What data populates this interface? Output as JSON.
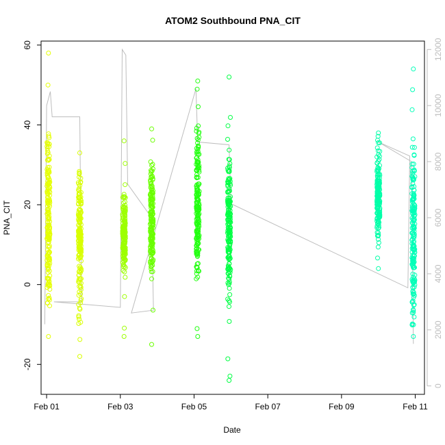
{
  "chart_data": {
    "type": "scatter",
    "title": "ATOM2 Southbound PNA_CIT",
    "xlabel": "Date",
    "ylabel": "PNA_CIT",
    "x_ticks": [
      "Feb 01",
      "Feb 03",
      "Feb 05",
      "Feb 07",
      "Feb 09",
      "Feb 11"
    ],
    "xlim_days": [
      0.85,
      11.25
    ],
    "ylim": [
      -27.5,
      61
    ],
    "y_ticks": [
      -20,
      0,
      20,
      40,
      60
    ],
    "secondary_axis": {
      "label": "",
      "ylim": [
        -300,
        12300
      ],
      "ticks": [
        0,
        2000,
        4000,
        6000,
        8000,
        10000,
        12000
      ],
      "color": "#bdbdbd"
    },
    "grid": false,
    "legend": "none",
    "point_style": "open circle",
    "line_color": "#bdbdbd",
    "clusters": [
      {
        "day": 1.05,
        "center": 16,
        "half_width_y": 20,
        "y_min": -13,
        "y_max": 58,
        "color": "#e5ff00"
      },
      {
        "day": 1.9,
        "center": 12,
        "half_width_y": 17,
        "y_min": -18,
        "y_max": 33,
        "color": "#d9ff00"
      },
      {
        "day": 3.1,
        "center": 12,
        "half_width_y": 10,
        "y_min": -13,
        "y_max": 36,
        "color": "#9dff00"
      },
      {
        "day": 3.85,
        "center": 16,
        "half_width_y": 14,
        "y_min": -15,
        "y_max": 39,
        "color": "#6aff00"
      },
      {
        "day": 5.1,
        "center": 20,
        "half_width_y": 20,
        "y_min": -13,
        "y_max": 51,
        "color": "#22ff10"
      },
      {
        "day": 5.95,
        "center": 14,
        "half_width_y": 20,
        "y_min": -24,
        "y_max": 52,
        "color": "#00ff44"
      },
      {
        "day": 10.0,
        "center": 22,
        "half_width_y": 12,
        "y_min": 4,
        "y_max": 38,
        "color": "#00ffa8"
      },
      {
        "day": 10.95,
        "center": 14,
        "half_width_y": 22,
        "y_min": -13,
        "y_max": 54,
        "color": "#00ffb8"
      }
    ],
    "secondary_series": [
      {
        "day": 0.95,
        "value": 2200
      },
      {
        "day": 1.0,
        "value": 10000
      },
      {
        "day": 1.1,
        "value": 10500
      },
      {
        "day": 1.15,
        "value": 9600
      },
      {
        "day": 1.9,
        "value": 9600
      },
      {
        "day": 1.95,
        "value": 3000
      },
      {
        "day": 1.2,
        "value": 3000
      },
      {
        "day": 3.0,
        "value": 2800
      },
      {
        "day": 3.05,
        "value": 12000
      },
      {
        "day": 3.15,
        "value": 11800
      },
      {
        "day": 3.2,
        "value": 7200
      },
      {
        "day": 3.85,
        "value": 6000
      },
      {
        "day": 3.9,
        "value": 2700
      },
      {
        "day": 3.3,
        "value": 2600
      },
      {
        "day": 5.05,
        "value": 10600
      },
      {
        "day": 5.1,
        "value": 8700
      },
      {
        "day": 5.95,
        "value": 8600
      },
      {
        "day": 6.0,
        "value": 6500
      },
      {
        "day": 10.8,
        "value": 3500
      },
      {
        "day": 10.85,
        "value": 8200
      },
      {
        "day": 10.0,
        "value": 8700
      },
      {
        "day": 10.9,
        "value": 8000
      },
      {
        "day": 10.95,
        "value": 1500
      }
    ]
  }
}
